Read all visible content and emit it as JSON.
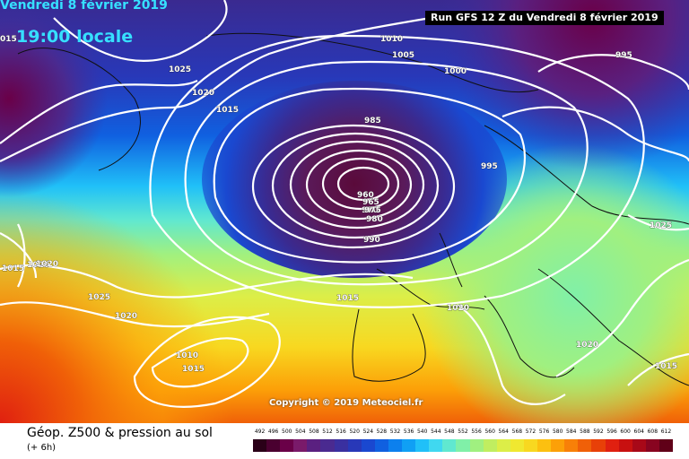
{
  "header": {
    "date": "Vendredi 8 février 2019",
    "time": "19:00 locale",
    "run": "Run GFS 12 Z du Vendredi 8 février 2019"
  },
  "copyright": "Copyright © 2019 Meteociel.fr",
  "legend": {
    "title": "Géop. Z500 & pression au sol",
    "subtitle": "(+ 6h)",
    "scale_values": [
      "492",
      "496",
      "500",
      "504",
      "508",
      "512",
      "516",
      "520",
      "524",
      "528",
      "532",
      "536",
      "540",
      "544",
      "548",
      "552",
      "556",
      "560",
      "564",
      "568",
      "572",
      "576",
      "580",
      "584",
      "588",
      "592",
      "596",
      "600",
      "604",
      "608",
      "612"
    ],
    "scale_colors": [
      "#2a0018",
      "#4a0030",
      "#6a0048",
      "#7a1a6a",
      "#5a2080",
      "#4a2a90",
      "#3a30a0",
      "#2838b8",
      "#1a48d0",
      "#1060e0",
      "#0c80ee",
      "#10a0f4",
      "#20c0f8",
      "#40d8f0",
      "#60e8d0",
      "#80f0a8",
      "#a0f080",
      "#c0ee60",
      "#dcee48",
      "#f0e830",
      "#f8d820",
      "#fcc010",
      "#fca008",
      "#f88008",
      "#f06008",
      "#e84008",
      "#e02010",
      "#c81010",
      "#a80818",
      "#880420",
      "#600018"
    ]
  },
  "isobars": [
    {
      "label": "1010"
    },
    {
      "label": "1005"
    },
    {
      "label": "1000"
    },
    {
      "label": "995"
    },
    {
      "label": "1025"
    },
    {
      "label": "1020"
    },
    {
      "label": "1015"
    },
    {
      "label": "985"
    },
    {
      "label": "995"
    },
    {
      "label": "960"
    },
    {
      "label": "965"
    },
    {
      "label": "970"
    },
    {
      "label": "975"
    },
    {
      "label": "980"
    },
    {
      "label": "990"
    },
    {
      "label": "1025"
    },
    {
      "label": "1015"
    },
    {
      "label": "1020"
    },
    {
      "label": "1020"
    },
    {
      "label": "1025"
    },
    {
      "label": "1020"
    },
    {
      "label": "1010"
    },
    {
      "label": "1015"
    },
    {
      "label": "1020"
    },
    {
      "label": "1015"
    },
    {
      "label": "015"
    },
    {
      "label": "1015"
    },
    {
      "label": "1020"
    }
  ]
}
